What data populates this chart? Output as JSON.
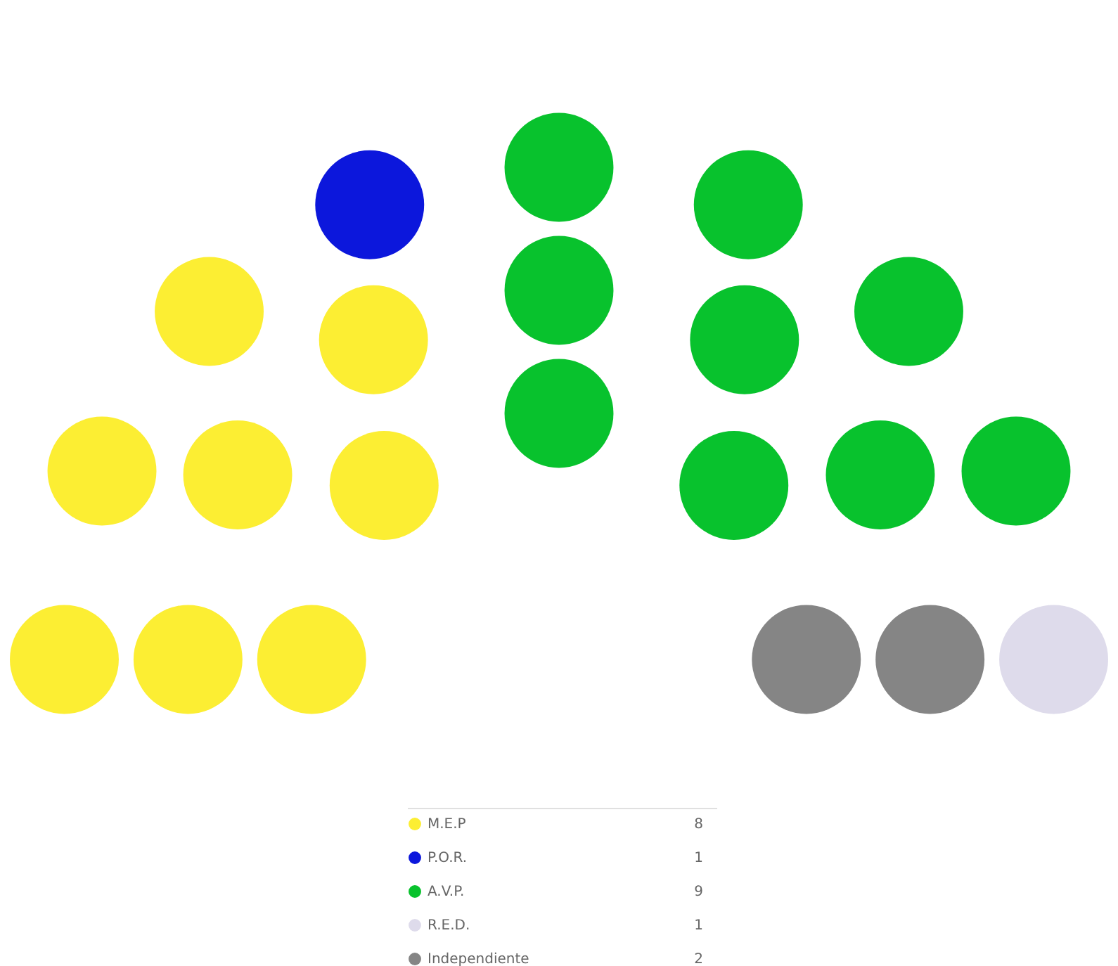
{
  "chart_data": {
    "type": "other",
    "categories": [
      "M.E.P",
      "P.O.R.",
      "A.V.P.",
      "R.E.D.",
      "Independiente"
    ],
    "values": [
      8,
      1,
      9,
      1,
      2
    ],
    "colors": [
      "#fcee33",
      "#0c17dc",
      "#08c22d",
      "#dedbeb",
      "#858585"
    ],
    "data_labels": true
  }
}
